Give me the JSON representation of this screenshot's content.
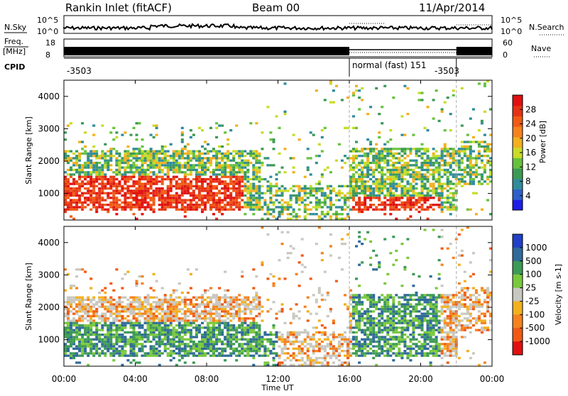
{
  "header": {
    "station": "Rankin Inlet (fitACF)",
    "beam": "Beam 00",
    "date": "11/Apr/2014"
  },
  "summary": {
    "nsky_label": "N.Sky",
    "nsearch_label": "N.Search",
    "freq_label_1": "Freq.",
    "freq_label_2": "[MHz]",
    "nave_label": "Nave",
    "cpid_label": "CPID",
    "nsky_ticks": [
      "10^5",
      "10^0"
    ],
    "nsearch_ticks": [
      "10^5",
      "10^0"
    ],
    "freq_ticks": [
      "18",
      "8"
    ],
    "nave_ticks": [
      "60",
      "0"
    ],
    "cpid_segments": [
      {
        "start_h": 0,
        "end_h": 16,
        "label": "-3503"
      },
      {
        "start_h": 16,
        "end_h": 22,
        "label": "normal (fast) 151",
        "label2": "-3503"
      }
    ]
  },
  "chart_data": [
    {
      "type": "heatmap",
      "name": "power",
      "ylabel": "Slant Range [km]",
      "xlim": [
        0,
        24
      ],
      "ylim": [
        180,
        4500
      ],
      "yticks": [
        1000,
        2000,
        3000,
        4000
      ],
      "colorbar": {
        "label": "Power [dB]",
        "range": [
          0,
          32
        ],
        "ticks": [
          "4",
          "8",
          "12",
          "16",
          "20",
          "24",
          "28"
        ],
        "colors": [
          "#1e1ee6",
          "#2e5fc8",
          "#2f8c9a",
          "#3c9a55",
          "#66c23c",
          "#c8dc28",
          "#f2b01e",
          "#f5821e",
          "#f05a14",
          "#e63214",
          "#e01010"
        ]
      }
    },
    {
      "type": "heatmap",
      "name": "velocity",
      "xlabel": "Time UT",
      "ylabel": "Slant Range [km]",
      "xlim": [
        0,
        24
      ],
      "ylim": [
        180,
        4500
      ],
      "yticks": [
        1000,
        2000,
        3000,
        4000
      ],
      "xticks": [
        "00:00",
        "04:00",
        "08:00",
        "12:00",
        "16:00",
        "20:00",
        "00:00"
      ],
      "colorbar": {
        "label": "Velocity [m s-1]",
        "ticks": [
          "1000",
          "500",
          "100",
          "25",
          "-25",
          "-100",
          "-500",
          "-1000"
        ],
        "colors": [
          "#2040c8",
          "#2f6a9a",
          "#3c9a55",
          "#7ac83c",
          "#c8c8c0",
          "#f2b01e",
          "#f5821e",
          "#f05a14",
          "#e01010"
        ]
      }
    }
  ]
}
